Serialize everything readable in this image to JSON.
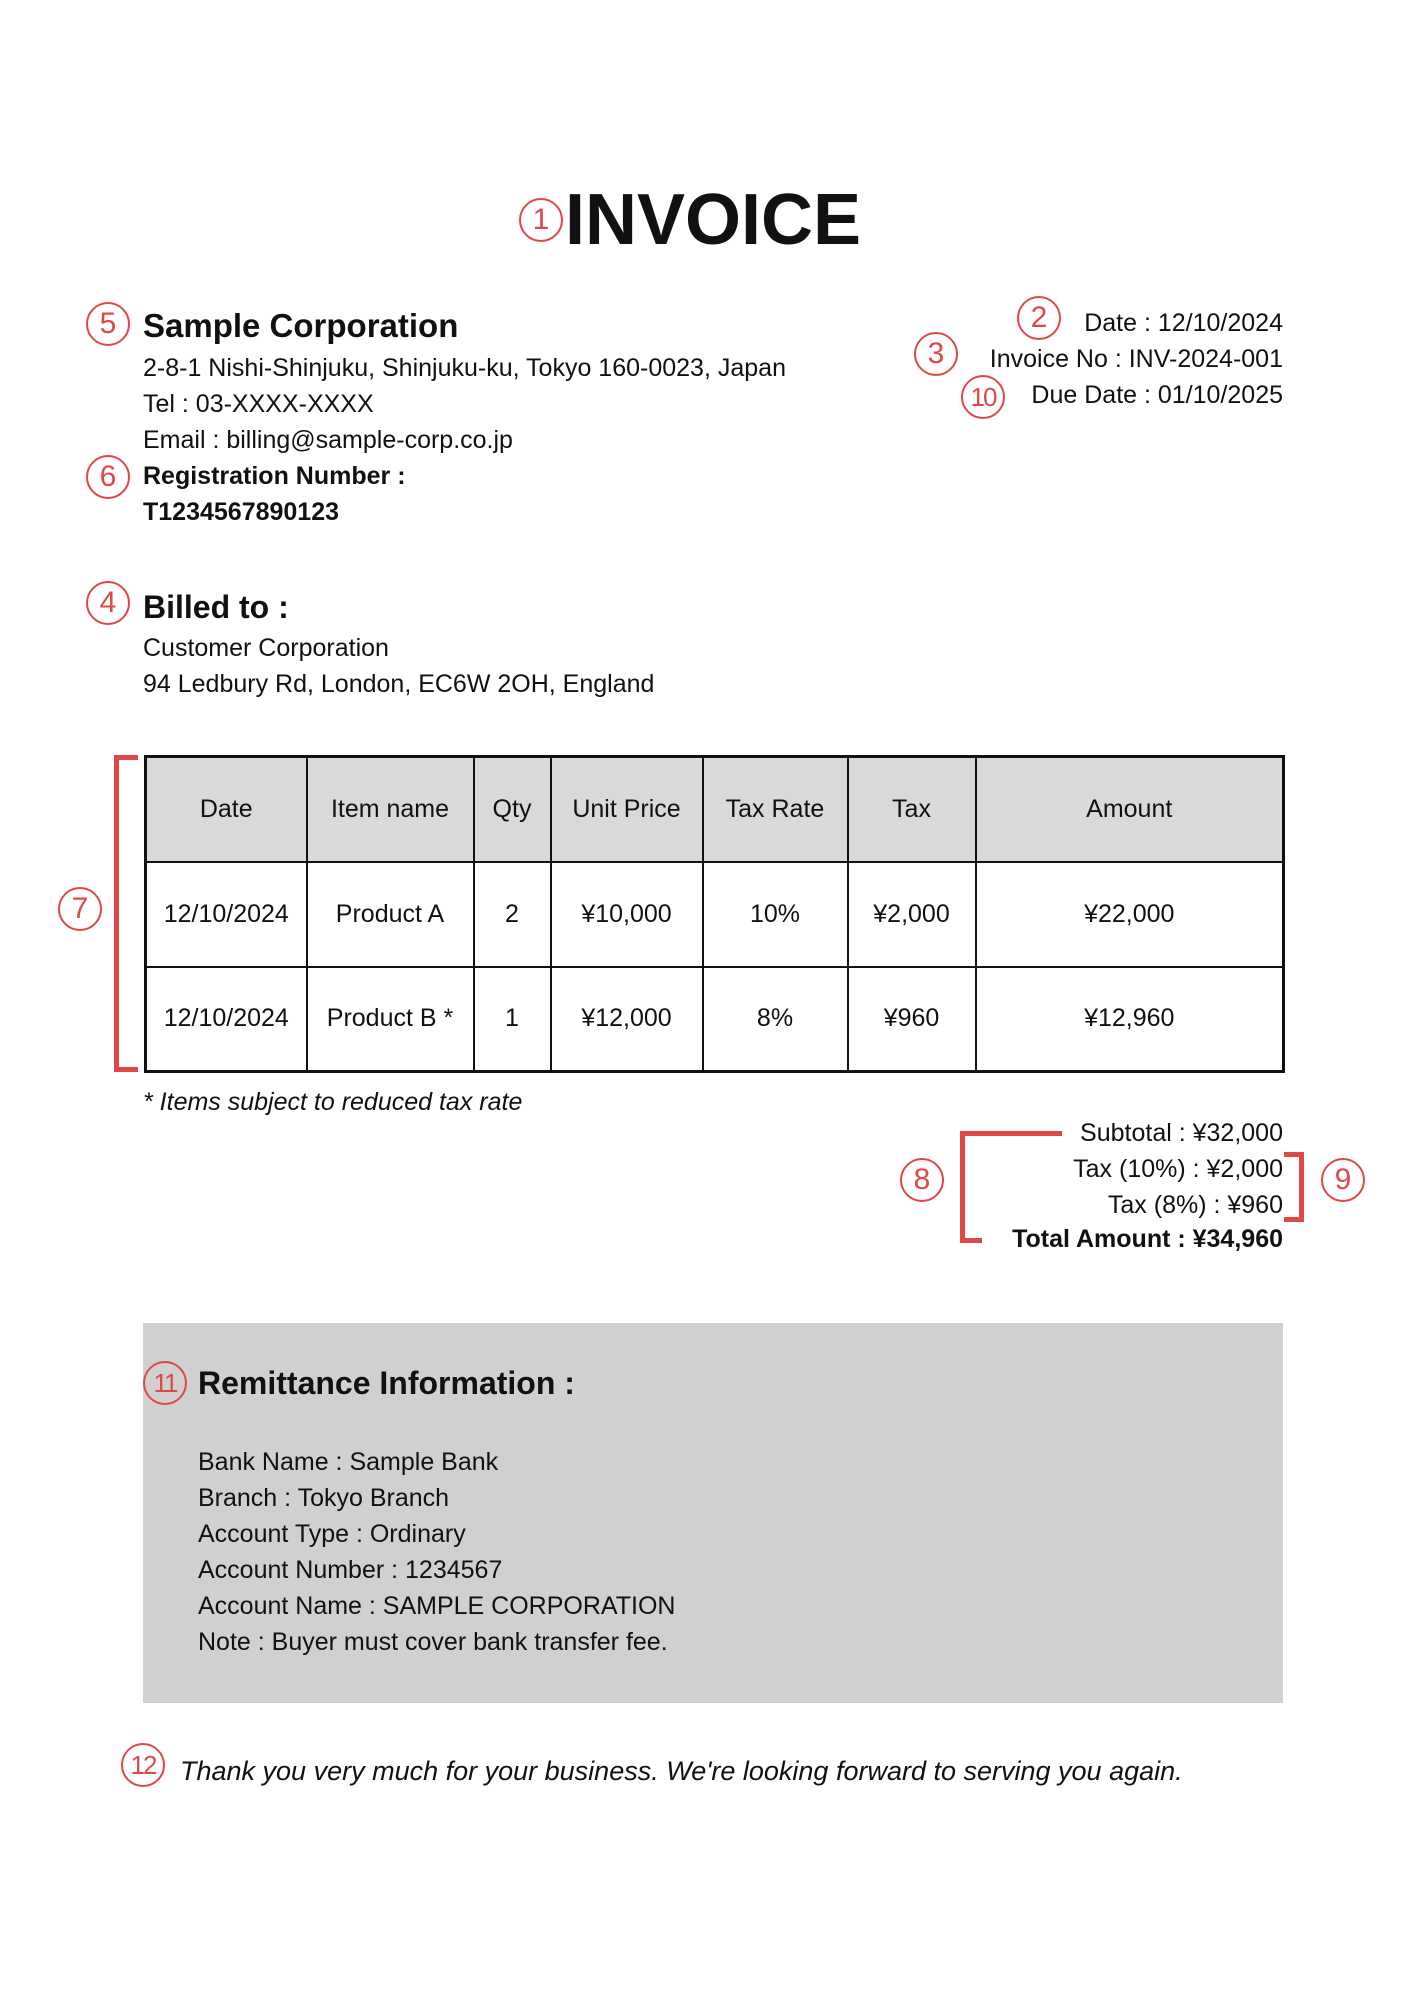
{
  "title": "INVOICE",
  "markers": [
    "1",
    "2",
    "3",
    "4",
    "5",
    "6",
    "7",
    "8",
    "9",
    "10",
    "11",
    "12"
  ],
  "marker_color": "#e04848",
  "issuer": {
    "name": "Sample Corporation",
    "address": "2-8-1 Nishi-Shinjuku, Shinjuku-ku, Tokyo 160-0023, Japan",
    "tel": "Tel : 03-XXXX-XXXX",
    "email": "Email : billing@sample-corp.co.jp",
    "registration_label": "Registration Number :",
    "registration_number": "T1234567890123"
  },
  "meta": {
    "date": "Date : 12/10/2024",
    "invoice_no": "Invoice No : INV-2024-001",
    "due_date": "Due Date : 01/10/2025"
  },
  "billed_to": {
    "label": "Billed to :",
    "name": "Customer Corporation",
    "address": "94 Ledbury Rd, London, EC6W 2OH, England"
  },
  "table": {
    "headers": [
      "Date",
      "Item name",
      "Qty",
      "Unit Price",
      "Tax Rate",
      "Tax",
      "Amount"
    ],
    "rows": [
      [
        "12/10/2024",
        "Product A",
        "2",
        "¥10,000",
        "10%",
        "¥2,000",
        "¥22,000"
      ],
      [
        "12/10/2024",
        "Product B *",
        "1",
        "¥12,000",
        "8%",
        "¥960",
        "¥12,960"
      ]
    ]
  },
  "footnote": "* Items subject to reduced tax rate",
  "totals": {
    "subtotal": "Subtotal : ¥32,000",
    "tax10": "Tax (10%) : ¥2,000",
    "tax8": "Tax (8%) : ¥960",
    "total": "Total Amount : ¥34,960"
  },
  "remittance": {
    "title": "Remittance Information :",
    "lines": [
      "Bank Name : Sample Bank",
      "Branch : Tokyo Branch",
      "Account Type : Ordinary",
      "Account Number : 1234567",
      "Account Name : SAMPLE CORPORATION",
      "Note : Buyer must cover bank transfer fee."
    ]
  },
  "thanks": "Thank you very much for your business. We're looking forward to serving you again."
}
